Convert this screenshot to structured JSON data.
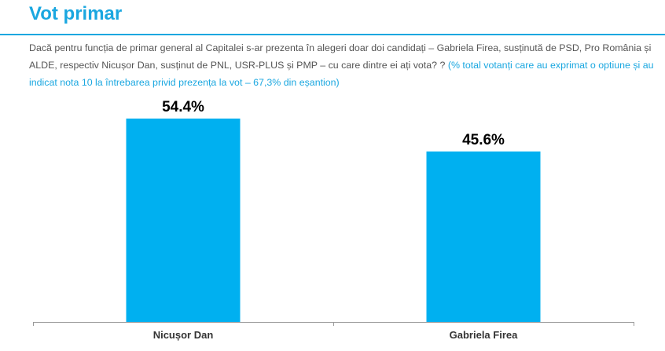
{
  "header": {
    "title": "Vot primar"
  },
  "question": {
    "text": "Dacă pentru funcția de primar general al Capitalei s-ar prezenta în alegeri doar doi candidați – Gabriela Firea, susținută de PSD, Pro România și ALDE, respectiv Nicușor Dan, susținut de PNL, USR-PLUS și PMP – cu care dintre ei ați vota? ? ",
    "note": "(% total votanți care au exprimat o optiune și au indicat nota 10 la întrebarea privid prezența la vot – 67,3% din eșantion)"
  },
  "chart_data": {
    "type": "bar",
    "categories": [
      "Nicușor Dan",
      "Gabriela Firea"
    ],
    "values": [
      54.4,
      45.6
    ],
    "data_labels": [
      "54.4%",
      "45.6%"
    ],
    "title": "",
    "xlabel": "",
    "ylabel": "",
    "ylim": [
      0,
      60
    ],
    "grid": false,
    "legend": "none",
    "bar_color": "#00b0f0"
  }
}
